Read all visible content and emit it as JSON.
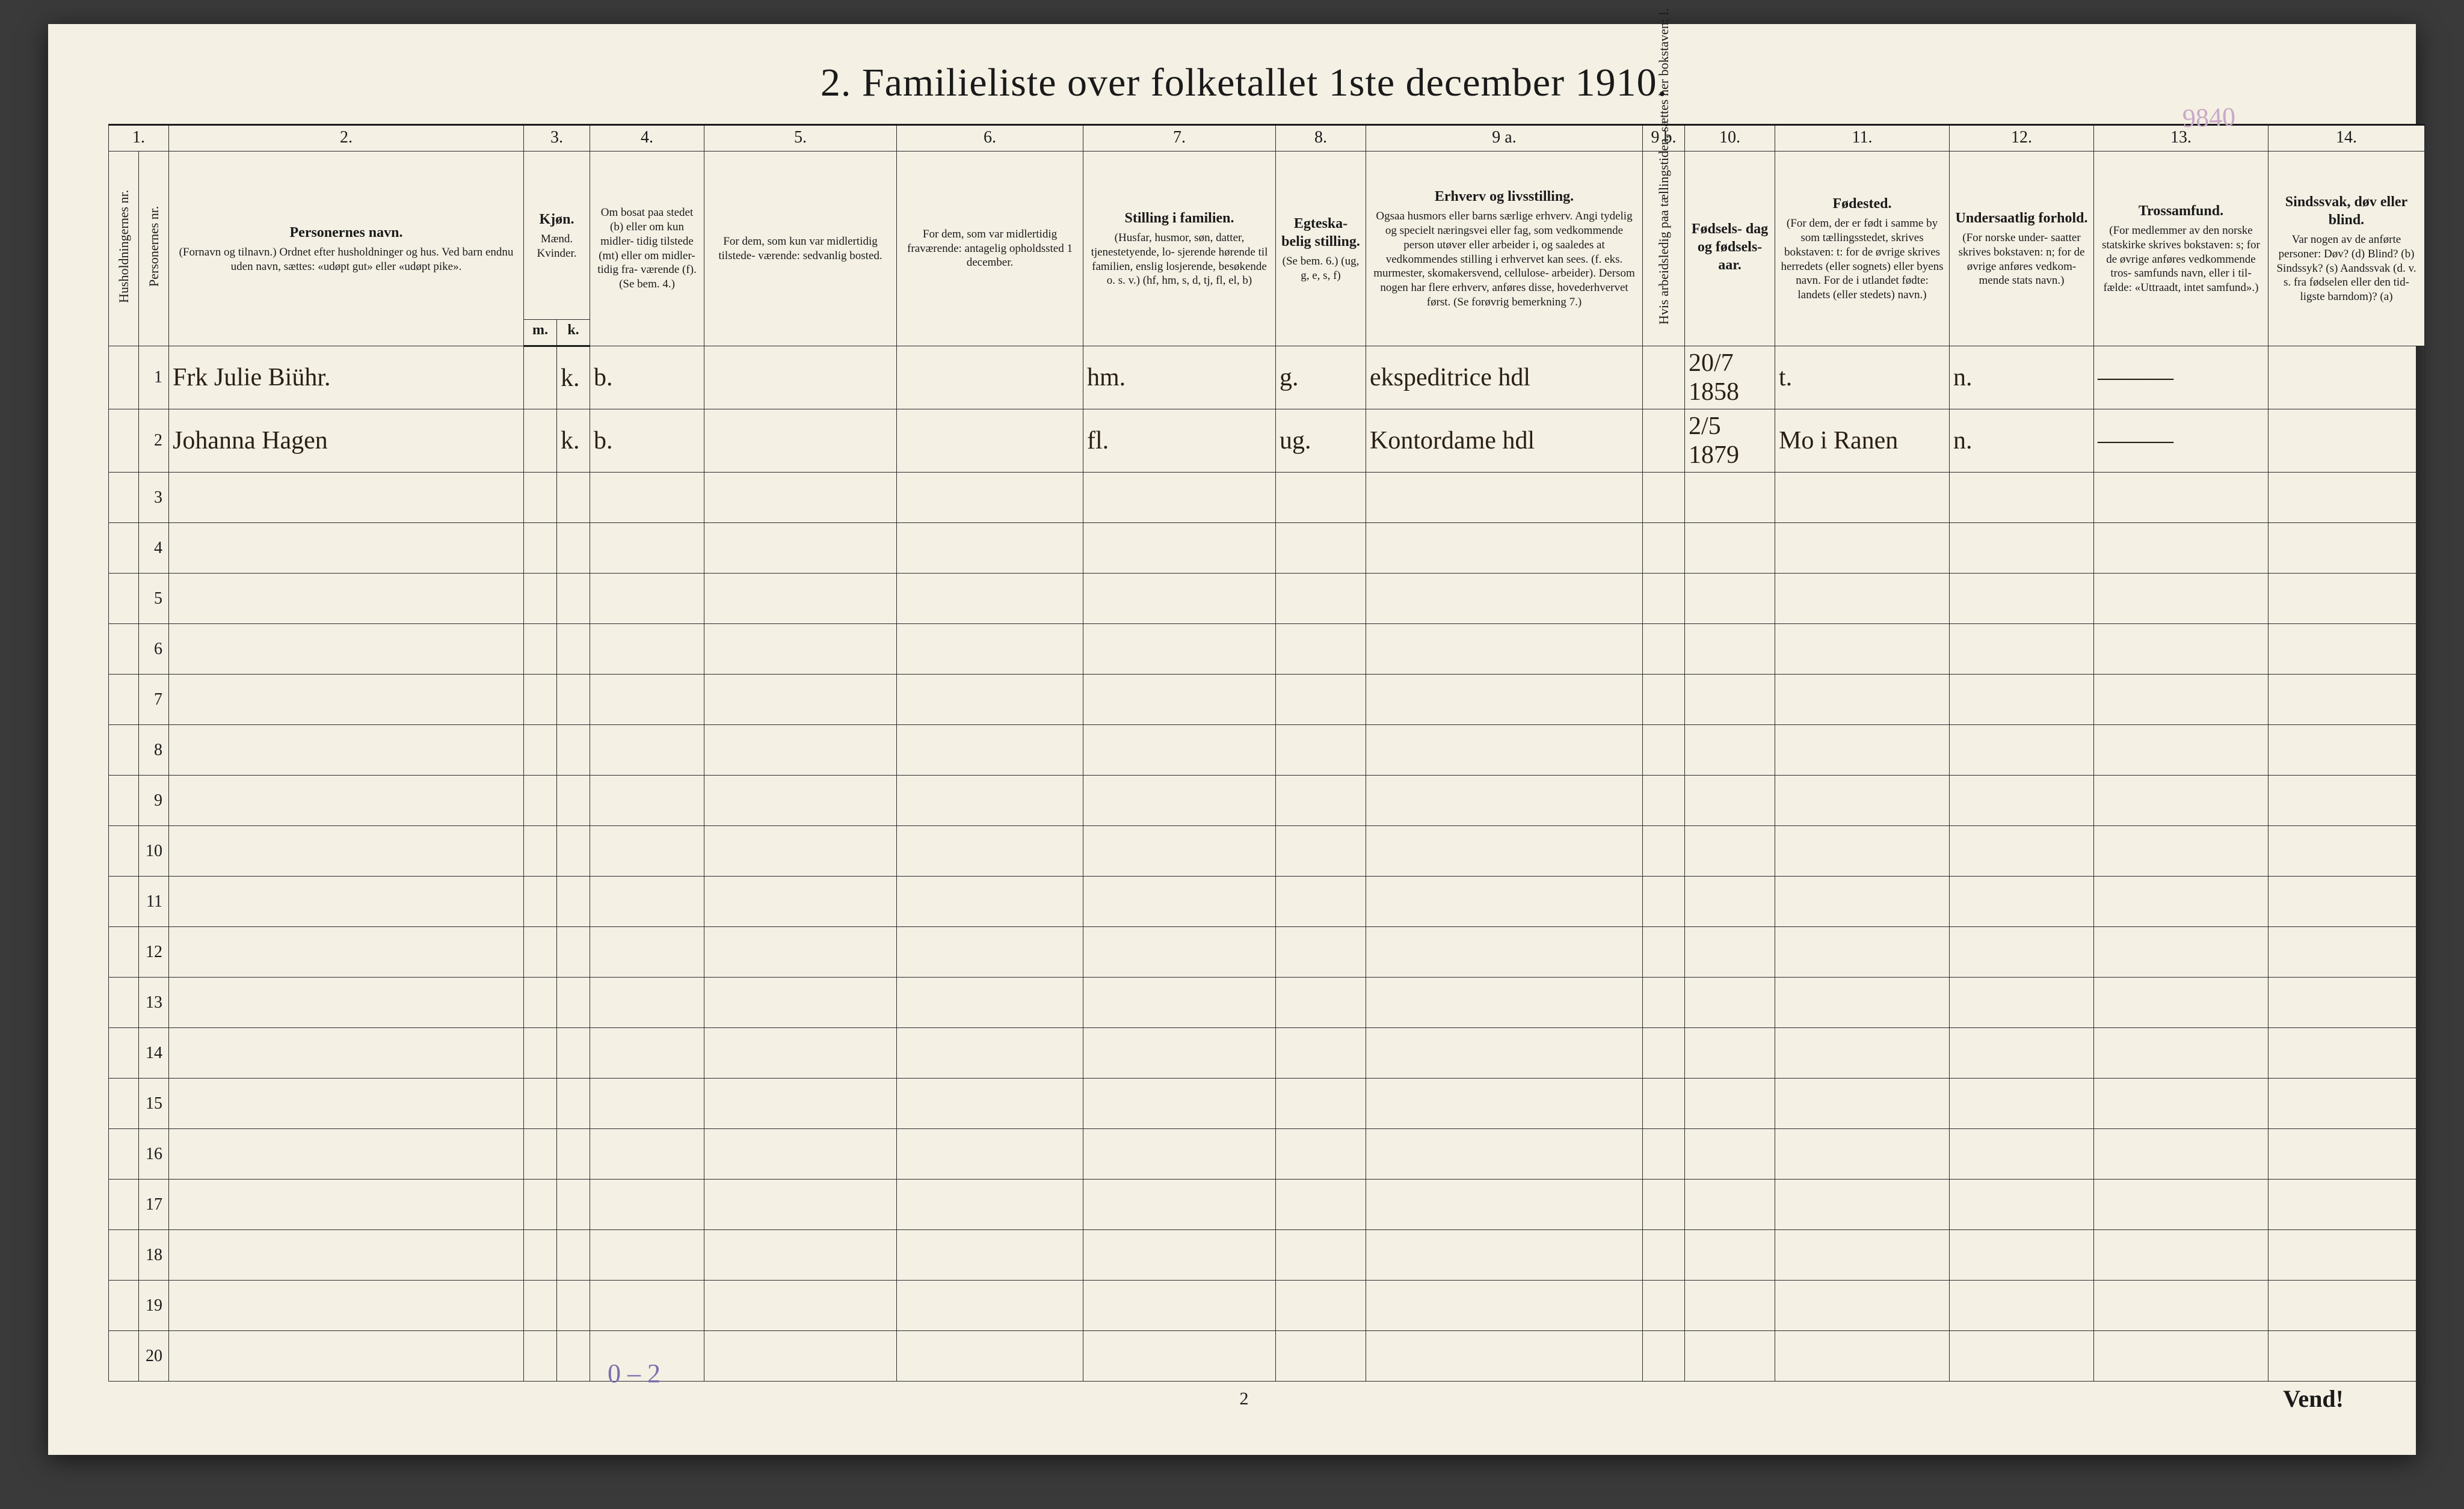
{
  "page": {
    "title": "2.  Familieliste over folketallet 1ste december 1910.",
    "corner_note": "9840",
    "foot_page_number": "2",
    "foot_vend": "Vend!",
    "pencil_note": "0 – 2"
  },
  "column_numbers": [
    "1.",
    "",
    "2.",
    "3.",
    "4.",
    "5.",
    "6.",
    "7.",
    "8.",
    "9 a.",
    "9 b.",
    "10.",
    "11.",
    "12.",
    "13.",
    "14."
  ],
  "headers": {
    "c1": "Husholdningernes nr.",
    "c2": "Personernes nr.",
    "c3_title": "Personernes navn.",
    "c3_small": "(Fornavn og tilnavn.)\nOrdnet efter husholdninger og hus.\nVed barn endnu uden navn, sættes: «udøpt gut»\neller «udøpt pike».",
    "c4_title": "Kjøn.",
    "c4_sub": "Mænd.\nKvinder.",
    "c4_mk_m": "m.",
    "c4_mk_k": "k.",
    "c5": "Om bosat\npaa stedet\n(b) eller om\nkun midler-\ntidig tilstede\n(mt) eller\nom midler-\ntidig fra-\nværende (f).\n(Se bem. 4.)",
    "c6": "For dem, som kun var\nmidlertidig tilstede-\nværende:\nsedvanlig bosted.",
    "c7": "For dem, som var\nmidlertidig\nfraværende:\nantagelig opholdssted\n1 december.",
    "c8_title": "Stilling i familien.",
    "c8_small": "(Husfar, husmor, søn,\ndatter, tjenestetyende, lo-\nsjerende hørende til familien,\nenslig losjerende, besøkende\no. s. v.)\n(hf, hm, s, d, tj, fl,\nel, b)",
    "c9_title": "Egteska-\nbelig\nstilling.",
    "c9_small": "(Se bem. 6.)\n(ug, g,\ne, s, f)",
    "c10_title": "Erhverv og livsstilling.",
    "c10_small": "Ogsaa husmors eller barns særlige erhverv.\nAngi tydelig og specielt næringsvei eller fag, som\nvedkommende person utøver eller arbeider i,\nog saaledes at vedkommendes stilling i erhvervet kan\nsees. (f. eks. murmester, skomakersvend, cellulose-\narbeider). Dersom nogen har flere erhverv,\nanføres disse, hovederhvervet først.\n(Se forøvrig bemerkning 7.)",
    "c11": "Hvis arbeidsledig\npaa tællingstiden, sættes\nher bokstaven: l.",
    "c12_title": "Fødsels-\ndag\nog\nfødsels-\naar.",
    "c13_title": "Fødested.",
    "c13_small": "(For dem, der er født\ni samme by som\ntællingsstedet,\nskrives bokstaven: t:\nfor de øvrige skrives\nherredets (eller sognets)\neller byens navn.\nFor de i utlandet fødte:\nlandets (eller stedets)\nnavn.)",
    "c14_title": "Undersaatlig\nforhold.",
    "c14_small": "(For norske under-\nsaatter skrives\nbokstaven: n;\nfor de øvrige\nanføres vedkom-\nmende stats navn.)",
    "c15_title": "Trossamfund.",
    "c15_small": "(For medlemmer av\nden norske statskirke\nskrives bokstaven: s;\nfor de øvrige anføres\nvedkommende tros-\nsamfunds navn, eller i til-\nfælde: «Uttraadt, intet\nsamfund».)",
    "c16_title": "Sindssvak, døv\neller blind.",
    "c16_small": "Var nogen av de anførte\npersoner:\nDøv?      (d)\nBlind?    (b)\nSindssyk? (s)\nAandssvak (d. v. s. fra\nfødselen eller den tid-\nligste barndom)? (a)"
  },
  "rows": [
    {
      "num": "1",
      "name": "Frk Julie Biühr.",
      "sex": "k.",
      "bosat": "b.",
      "midtilstede": "",
      "midfra": "",
      "stilling_fam": "hm.",
      "egte": "g.",
      "erhverv": "ekspeditrice hdl",
      "ledig": "",
      "fodselsdato": "20/7 1858",
      "fodested": "t.",
      "undersaat": "n.",
      "tros": "———",
      "sinds": ""
    },
    {
      "num": "2",
      "name": "Johanna Hagen",
      "sex": "k.",
      "bosat": "b.",
      "midtilstede": "",
      "midfra": "",
      "stilling_fam": "fl.",
      "egte": "ug.",
      "erhverv": "Kontordame hdl",
      "ledig": "",
      "fodselsdato": "2/5 1879",
      "fodested": "Mo i Ranen",
      "undersaat": "n.",
      "tros": "———",
      "sinds": ""
    }
  ],
  "blank_row_numbers": [
    "3",
    "4",
    "5",
    "6",
    "7",
    "8",
    "9",
    "10",
    "11",
    "12",
    "13",
    "14",
    "15",
    "16",
    "17",
    "18",
    "19",
    "20"
  ]
}
